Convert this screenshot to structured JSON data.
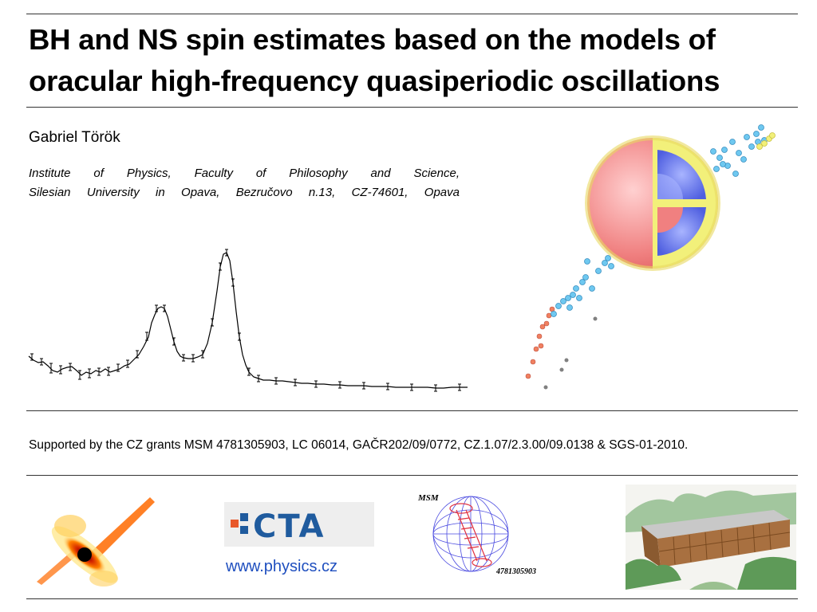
{
  "title": "BH and NS spin estimates based on the models of oracular high-frequency quasiperiodic  oscillations",
  "author": "Gabriel Török",
  "affiliation": {
    "line1": "Institute of Physics, Faculty of Philosophy and Science,",
    "line2": "Silesian University in Opava, Bezručovo n.13, CZ-74601, Opava"
  },
  "grants": "Supported by the CZ grants  MSM 4781305903, LC 06014, GAČR202/09/0772, CZ.1.07/2.3.00/09.0138  &  SGS-01-2010.",
  "logos": {
    "cta_text": "CTA",
    "msm_label": "MSM",
    "msm_number": "4781305903"
  },
  "link": "www.physics.cz",
  "figure_colors": {
    "spectrum_line": "#000000",
    "points_blue": "#6ec8f0",
    "points_orange": "#f08060",
    "points_gray": "#808080",
    "star_red": "#f08080",
    "star_blue": "#5a6fe6",
    "star_yellow": "#f2f07a",
    "cta_blue": "#1f5b9e",
    "cta_orange": "#e8582a",
    "link_color": "#1f4fbf"
  }
}
